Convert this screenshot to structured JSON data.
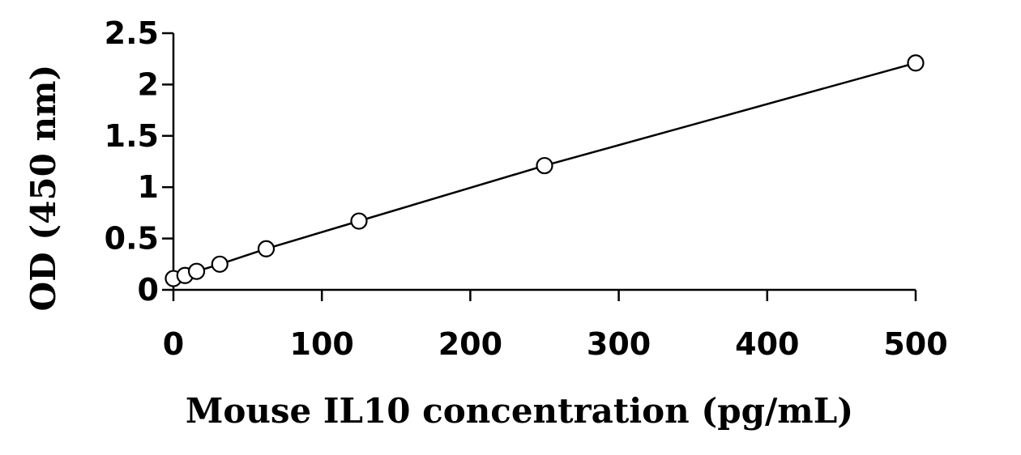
{
  "chart_data": {
    "type": "scatter",
    "title": "",
    "xlabel": "Mouse IL10 concentration (pg/mL)",
    "ylabel": "OD (450 nm)",
    "xlim": [
      0,
      500
    ],
    "ylim": [
      0,
      2.5
    ],
    "x_ticks": [
      "0",
      "100",
      "200",
      "300",
      "400",
      "500"
    ],
    "y_ticks": [
      "0",
      "0.5",
      "1",
      "1.5",
      "2",
      "2.5"
    ],
    "grid": false,
    "legend": "none",
    "series": [
      {
        "x": [
          0,
          7.8,
          15.6,
          31.25,
          62.5,
          125,
          250,
          500
        ],
        "y": [
          0.11,
          0.14,
          0.18,
          0.25,
          0.4,
          0.67,
          1.21,
          2.21
        ],
        "marker": "open-circle",
        "line": true
      }
    ]
  }
}
